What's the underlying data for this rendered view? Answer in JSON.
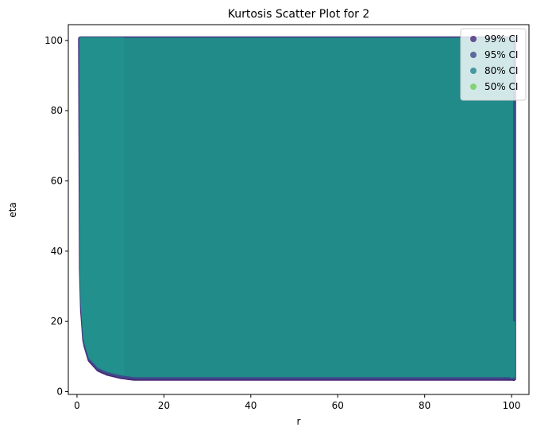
{
  "chart_data": {
    "type": "scatter",
    "title": "Kurtosis Scatter Plot for 2",
    "xlabel": "r",
    "ylabel": "eta",
    "xlim": [
      -2,
      104
    ],
    "ylim": [
      -0.8,
      104.5
    ],
    "x_ticks": [
      0,
      20,
      40,
      60,
      80,
      100
    ],
    "y_ticks": [
      0,
      20,
      40,
      60,
      80,
      100
    ],
    "grid": false,
    "legend_position": "top-right",
    "series": [
      {
        "name": "99% CI",
        "color": "#482878",
        "description_region": {
          "x": [
            0.8,
            100.5
          ],
          "eta_top": 100.5,
          "eta_floor": 3.7,
          "near_zero_boundary_at_r": [
            [
              0.8,
              46
            ],
            [
              1.2,
              24
            ],
            [
              1.8,
              14
            ],
            [
              3,
              9
            ],
            [
              5,
              6.3
            ],
            [
              7,
              5.2
            ],
            [
              10,
              4.3
            ],
            [
              13,
              3.8
            ]
          ]
        }
      },
      {
        "name": "95% CI",
        "color": "#3e4a89",
        "description_region": {
          "x": [
            0.8,
            100.5
          ],
          "eta_top": 100.5,
          "eta_floor": 3.9
        }
      },
      {
        "name": "80% CI",
        "color": "#26828e",
        "description_region": {
          "x": [
            0.9,
            100
          ],
          "eta_top": 100.3,
          "eta_floor": 4.3
        }
      },
      {
        "name": "50% CI",
        "color": "#6ece58",
        "description_region": {
          "x": [
            1.0,
            10.5
          ],
          "eta_top": 100.5
        }
      }
    ],
    "fill_color": "#218b8a",
    "dense_band_color": "#22908c",
    "right_edge_strip": {
      "x": 100.3,
      "eta": [
        4,
        20
      ]
    }
  }
}
